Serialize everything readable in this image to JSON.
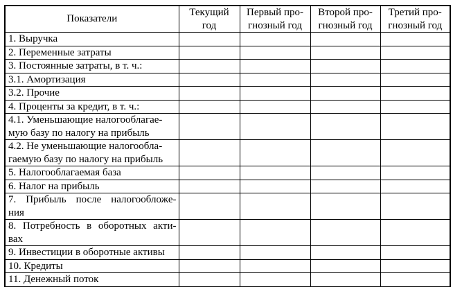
{
  "table": {
    "title": "financial-plan-indicators",
    "columns": [
      {
        "line1": "Показатели",
        "line2": ""
      },
      {
        "line1": "Текущий",
        "line2": "год"
      },
      {
        "line1": "Первый про-",
        "line2": "гнозный год"
      },
      {
        "line1": "Второй про-",
        "line2": "гнозный год"
      },
      {
        "line1": "Третий про-",
        "line2": "гнозный год"
      }
    ],
    "rows": [
      {
        "label": "1. Выручка",
        "label2": ""
      },
      {
        "label": "2. Переменные затраты",
        "label2": ""
      },
      {
        "label": "3. Постоянные затраты, в т. ч.:",
        "label2": ""
      },
      {
        "label": "3.1. Амортизация",
        "label2": ""
      },
      {
        "label": "3.2. Прочие",
        "label2": ""
      },
      {
        "label": "4. Проценты за кредит, в т. ч.:",
        "label2": ""
      },
      {
        "label": "4.1. Уменьшающие налогооблагае-",
        "label2": "мую базу по налогу на прибыль"
      },
      {
        "label": "4.2. Не уменьшающие налогообла-",
        "label2": "гаемую базу по налогу на прибыль"
      },
      {
        "label": "5. Налогооблагаемая база",
        "label2": ""
      },
      {
        "label": "6. Налог на прибыль",
        "label2": ""
      },
      {
        "label": "7. Прибыль после налогообложе-",
        "label2": "ния"
      },
      {
        "label": "8. Потребность в оборотных акти-",
        "label2": "вах"
      },
      {
        "label": "9. Инвестиции в оборотные активы",
        "label2": ""
      },
      {
        "label": "10. Кредиты",
        "label2": ""
      },
      {
        "label": "11. Денежный поток",
        "label2": ""
      }
    ],
    "cell_values": [
      "",
      "",
      "",
      ""
    ],
    "colors": {
      "border": "#000000",
      "background": "#ffffff",
      "text": "#000000"
    }
  }
}
